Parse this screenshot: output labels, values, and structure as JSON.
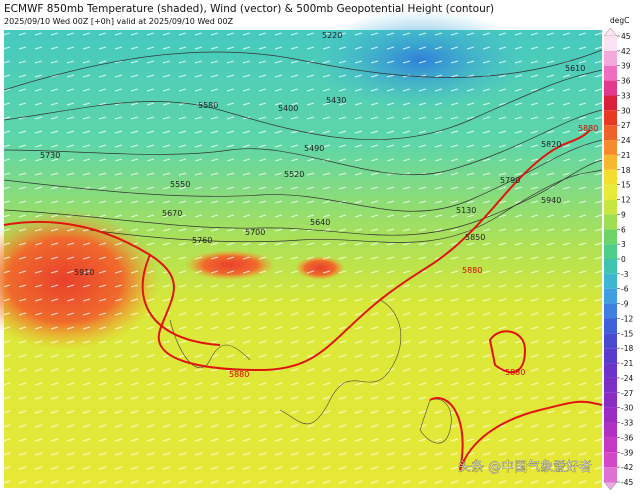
{
  "header": {
    "title": "ECMWF 850mb Temperature (shaded), Wind (vector) & 500mb Geopotential Height (contour)",
    "subtitle": "2025/09/10 Wed 00Z [+0h] valid at 2025/09/10 Wed 00Z"
  },
  "colorbar": {
    "unit": "degC",
    "ticks": [
      45,
      42,
      39,
      36,
      33,
      30,
      27,
      24,
      21,
      18,
      15,
      12,
      9,
      6,
      3,
      0,
      -3,
      -6,
      -9,
      -12,
      -15,
      -18,
      -21,
      -24,
      -27,
      -30,
      -33,
      -36,
      -39,
      -42,
      -45
    ]
  },
  "contours": {
    "labels": [
      "5220",
      "5610",
      "5580",
      "5400",
      "5430",
      "5490",
      "5730",
      "5550",
      "5520",
      "5670",
      "5640",
      "5700",
      "5760",
      "5910",
      "5130",
      "5790",
      "5820",
      "5880",
      "5940",
      "5850",
      "5880",
      "5880",
      "5880"
    ]
  },
  "watermark": "头条 @中国气象爱好者"
}
